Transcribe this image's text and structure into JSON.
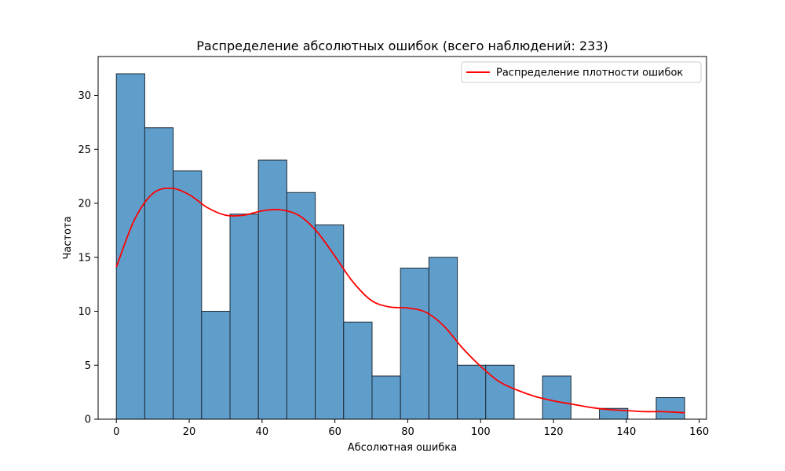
{
  "chart_data": {
    "type": "bar",
    "subtype": "histogram",
    "title": "Распределение абсолютных ошибок (всего наблюдений: 233)",
    "xlabel": "Абсолютная ошибка",
    "ylabel": "Частота",
    "xlim": [
      -5,
      162
    ],
    "ylim": [
      0,
      33.6
    ],
    "xticks": [
      0,
      20,
      40,
      60,
      80,
      100,
      120,
      140,
      160
    ],
    "yticks": [
      0,
      5,
      10,
      15,
      20,
      25,
      30
    ],
    "grid": false,
    "legend_position": "upper right",
    "bar_color": "#5f9ecb",
    "bar_edge_color": "#1f2a36",
    "bins": [
      {
        "x0": 0.0,
        "x1": 7.8,
        "count": 32
      },
      {
        "x0": 7.8,
        "x1": 15.6,
        "count": 27
      },
      {
        "x0": 15.6,
        "x1": 23.4,
        "count": 23
      },
      {
        "x0": 23.4,
        "x1": 31.2,
        "count": 10
      },
      {
        "x0": 31.2,
        "x1": 39.0,
        "count": 19
      },
      {
        "x0": 39.0,
        "x1": 46.8,
        "count": 24
      },
      {
        "x0": 46.8,
        "x1": 54.6,
        "count": 21
      },
      {
        "x0": 54.6,
        "x1": 62.4,
        "count": 18
      },
      {
        "x0": 62.4,
        "x1": 70.2,
        "count": 9
      },
      {
        "x0": 70.2,
        "x1": 78.0,
        "count": 4
      },
      {
        "x0": 78.0,
        "x1": 85.8,
        "count": 14
      },
      {
        "x0": 85.8,
        "x1": 93.6,
        "count": 15
      },
      {
        "x0": 93.6,
        "x1": 101.4,
        "count": 5
      },
      {
        "x0": 101.4,
        "x1": 109.2,
        "count": 5
      },
      {
        "x0": 109.2,
        "x1": 117.0,
        "count": 0
      },
      {
        "x0": 117.0,
        "x1": 124.8,
        "count": 4
      },
      {
        "x0": 124.8,
        "x1": 132.6,
        "count": 0
      },
      {
        "x0": 132.6,
        "x1": 140.4,
        "count": 1
      },
      {
        "x0": 140.4,
        "x1": 148.2,
        "count": 0
      },
      {
        "x0": 148.2,
        "x1": 156.0,
        "count": 2
      }
    ],
    "series": [
      {
        "name": "Распределение плотности ошибок",
        "type": "line",
        "color": "#ff0000",
        "x": [
          0,
          5,
          10,
          15,
          20,
          25,
          30,
          35,
          40,
          45,
          50,
          55,
          60,
          65,
          70,
          75,
          80,
          85,
          90,
          95,
          100,
          105,
          110,
          115,
          120,
          125,
          130,
          135,
          140,
          145,
          150,
          156
        ],
        "y": [
          14.1,
          18.5,
          20.9,
          21.4,
          20.8,
          19.6,
          18.9,
          18.9,
          19.3,
          19.4,
          18.9,
          17.4,
          15.1,
          12.7,
          11.0,
          10.4,
          10.3,
          9.9,
          8.6,
          6.6,
          4.9,
          3.5,
          2.7,
          2.1,
          1.7,
          1.4,
          1.1,
          0.9,
          0.8,
          0.7,
          0.7,
          0.6
        ]
      }
    ]
  }
}
